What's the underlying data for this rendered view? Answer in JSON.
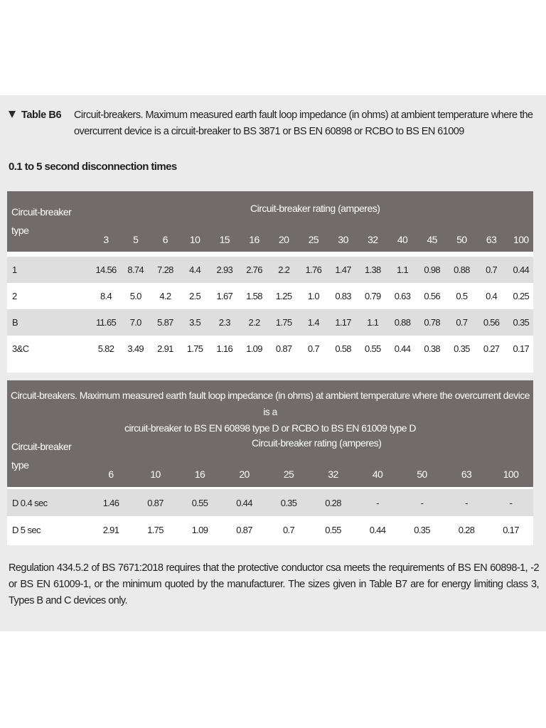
{
  "caption": {
    "label": "Table B6",
    "text": "Circuit-breakers. Maximum measured earth fault loop impedance (in ohms) at ambient temperature where the overcurrent device is a circuit-breaker to BS 3871 or BS EN 60898 or RCBO to BS EN 61009"
  },
  "subheading": "0.1 to 5 second disconnection times",
  "table1": {
    "type_header_line1": "Circuit-breaker",
    "type_header_line2": "type",
    "rating_header": "Circuit-breaker rating (amperes)",
    "ratings": [
      "3",
      "5",
      "6",
      "10",
      "15",
      "16",
      "20",
      "25",
      "30",
      "32",
      "40",
      "45",
      "50",
      "63",
      "100"
    ],
    "rows": [
      {
        "type": "1",
        "values": [
          "14.56",
          "8.74",
          "7.28",
          "4.4",
          "2.93",
          "2.76",
          "2.2",
          "1.76",
          "1.47",
          "1.38",
          "1.1",
          "0.98",
          "0.88",
          "0.7",
          "0.44"
        ]
      },
      {
        "type": "2",
        "values": [
          "8.4",
          "5.0",
          "4.2",
          "2.5",
          "1.67",
          "1.58",
          "1.25",
          "1.0",
          "0.83",
          "0.79",
          "0.63",
          "0.56",
          "0.5",
          "0.4",
          "0.25"
        ]
      },
      {
        "type": "B",
        "values": [
          "11.65",
          "7.0",
          "5.87",
          "3.5",
          "2.3",
          "2.2",
          "1.75",
          "1.4",
          "1.17",
          "1.1",
          "0.88",
          "0.78",
          "0.7",
          "0.56",
          "0.35"
        ]
      },
      {
        "type": "3&C",
        "values": [
          "5.82",
          "3.49",
          "2.91",
          "1.75",
          "1.16",
          "1.09",
          "0.87",
          "0.7",
          "0.58",
          "0.55",
          "0.44",
          "0.38",
          "0.35",
          "0.27",
          "0.17"
        ]
      }
    ]
  },
  "table2": {
    "title_line1": "Circuit-breakers. Maximum measured earth fault loop impedance (in ohms) at ambient temperature where the overcurrent device is a",
    "title_line2": "circuit-breaker to BS EN 60898 type D or RCBO to BS EN 61009 type D",
    "type_header_line1": "Circuit-breaker",
    "type_header_line2": "type",
    "rating_header": "Circuit-breaker rating (amperes)",
    "ratings": [
      "6",
      "10",
      "16",
      "20",
      "25",
      "32",
      "40",
      "50",
      "63",
      "100"
    ],
    "rows": [
      {
        "type": "D 0.4 sec",
        "values": [
          "1.46",
          "0.87",
          "0.55",
          "0.44",
          "0.35",
          "0.28",
          "-",
          "-",
          "-",
          "-"
        ]
      },
      {
        "type": "D 5 sec",
        "values": [
          "2.91",
          "1.75",
          "1.09",
          "0.87",
          "0.7",
          "0.55",
          "0.44",
          "0.35",
          "0.28",
          "0.17"
        ]
      }
    ]
  },
  "footer": "Regulation 434.5.2 of BS 7671:2018 requires that the protective conductor csa meets the requirements of BS EN 60898-1, -2 or BS EN 61009-1, or the minimum quoted by the manufacturer. The sizes given in Table B7 are for energy limiting class 3, Types B and C devices only.",
  "colors": {
    "header_band": "#716b6b",
    "row_shade": "#dfdede",
    "panel": "#ecebec"
  }
}
